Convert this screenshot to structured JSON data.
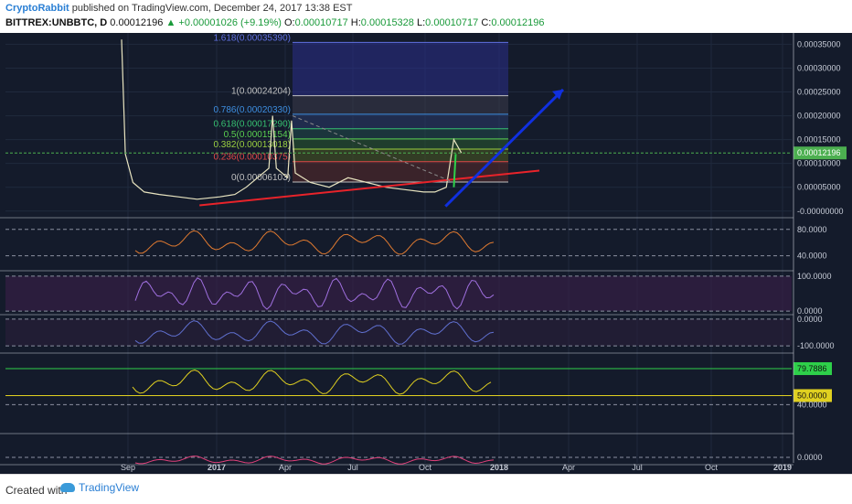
{
  "header": {
    "author": "CryptoRabbit",
    "published": " published on TradingView.com, December 24, 2017 13:38 EST",
    "symbol": "BITTREX:UNBBTC, D",
    "last": " 0.00012196 ",
    "change": "▲ +0.00001026 (+9.19%)",
    "o_label": " O:",
    "o": "0.00010717",
    "h_label": " H:",
    "h": "0.00015328",
    "l_label": " L:",
    "l": "0.00010717",
    "c_label": " C:",
    "c": "0.00012196"
  },
  "footer": {
    "created": "Created with",
    "brand": "TradingView"
  },
  "colors": {
    "bg": "#141b2b",
    "grid": "#1f2a3d",
    "price": "#e8e4c0",
    "trend_red": "#e8232a",
    "arrow_blue": "#1030e0",
    "fib_green": "#2ed04a",
    "cursor_line": "#4caf50"
  },
  "chart_data": {
    "type": "line",
    "x_ticks": [
      "Sep",
      "2017",
      "Apr",
      "Jul",
      "Oct",
      "2018",
      "Apr",
      "Jul",
      "Oct",
      "2019"
    ],
    "price_axis": {
      "ticks": [
        "0.00035000",
        "0.00030000",
        "0.00025000",
        "0.00020000",
        "0.00015000",
        "0.00010000",
        "0.00005000",
        "-0.00000000"
      ],
      "values": [
        0.00035,
        0.0003,
        0.00025,
        0.0002,
        0.00015,
        0.0001,
        5e-05,
        0
      ],
      "ylim": [
        -1e-05,
        0.00037
      ],
      "current_label": "0.00012196",
      "current": 0.00012196
    },
    "fib_levels": [
      {
        "label": "1.618(0.00035390)",
        "ratio": 1.618,
        "value": 0.0003539,
        "color": "#6070e0"
      },
      {
        "label": "1(0.00024204)",
        "ratio": 1,
        "value": 0.00024204,
        "color": "#c0c0c0"
      },
      {
        "label": "0.786(0.00020330)",
        "ratio": 0.786,
        "value": 0.0002033,
        "color": "#3d8ee0"
      },
      {
        "label": "0.618(0.00017290)",
        "ratio": 0.618,
        "value": 0.0001729,
        "color": "#36c070"
      },
      {
        "label": "0.5(0.00015154)",
        "ratio": 0.5,
        "value": 0.00015154,
        "color": "#5ad050"
      },
      {
        "label": "0.382(0.00013018)",
        "ratio": 0.382,
        "value": 0.00013018,
        "color": "#9ad040"
      },
      {
        "label": "0.236(0.00010375)",
        "ratio": 0.236,
        "value": 0.00010375,
        "color": "#e04848"
      },
      {
        "label": "0(0.00006103)",
        "ratio": 0,
        "value": 6.103e-05,
        "color": "#c0c0c0"
      }
    ],
    "price_series": [
      [
        0,
        0.00036
      ],
      [
        0.01,
        0.00012
      ],
      [
        0.03,
        6e-05
      ],
      [
        0.06,
        4e-05
      ],
      [
        0.1,
        3.5e-05
      ],
      [
        0.15,
        3e-05
      ],
      [
        0.2,
        2.5e-05
      ],
      [
        0.26,
        3e-05
      ],
      [
        0.3,
        3.5e-05
      ],
      [
        0.33,
        5e-05
      ],
      [
        0.36,
        7e-05
      ],
      [
        0.39,
        9e-05
      ],
      [
        0.4,
        0.0002
      ],
      [
        0.41,
        9e-05
      ],
      [
        0.44,
        7e-05
      ],
      [
        0.45,
        0.00019
      ],
      [
        0.46,
        8e-05
      ],
      [
        0.5,
        6e-05
      ],
      [
        0.55,
        5e-05
      ],
      [
        0.6,
        7e-05
      ],
      [
        0.65,
        6e-05
      ],
      [
        0.7,
        5e-05
      ],
      [
        0.75,
        4.5e-05
      ],
      [
        0.8,
        4e-05
      ],
      [
        0.83,
        4e-05
      ],
      [
        0.86,
        5e-05
      ],
      [
        0.88,
        0.00015
      ],
      [
        0.9,
        0.00012196
      ]
    ],
    "indicator_panels": [
      {
        "ticks": [
          "80.0000",
          "40.0000"
        ],
        "values": [
          80,
          40
        ],
        "ylim": [
          20,
          95
        ]
      },
      {
        "ticks": [
          "100.0000",
          "0.0000"
        ],
        "values": [
          100,
          0
        ],
        "ylim": [
          -5,
          110
        ]
      },
      {
        "ticks": [
          "0.0000",
          "-100.0000"
        ],
        "values": [
          0,
          -100
        ],
        "ylim": [
          -120,
          10
        ]
      },
      {
        "ticks": [
          "79.7886",
          "50.0000",
          "40.0000"
        ],
        "values": [
          79.7886,
          50,
          40
        ],
        "ylim": [
          10,
          95
        ]
      },
      {
        "ticks": [
          "0.0000"
        ],
        "values": [
          0
        ],
        "ylim": [
          -1,
          4
        ]
      }
    ]
  }
}
